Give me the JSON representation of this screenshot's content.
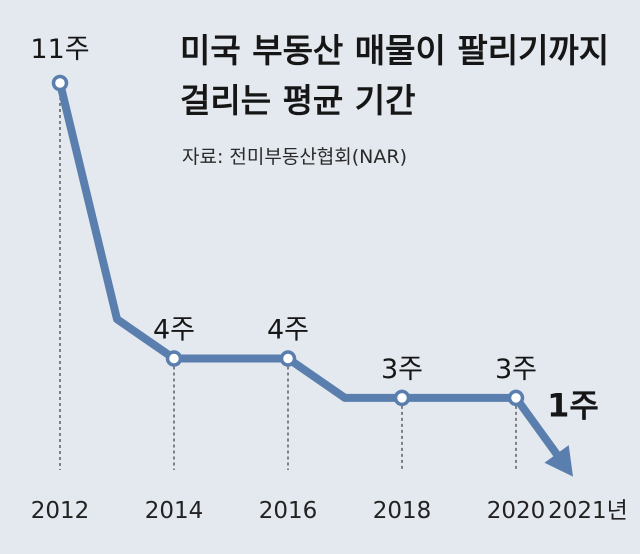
{
  "chart_data": {
    "type": "line",
    "title_lines": [
      "미국 부동산 매물이 팔리기까지",
      "걸리는 평균 기간"
    ],
    "source": "자료: 전미부동산협회(NAR)",
    "x_tick_labels": [
      "2012",
      "2014",
      "2016",
      "2018",
      "2020",
      "2021년"
    ],
    "series": [
      {
        "x": [
          2012,
          2013,
          2014,
          2015,
          2016,
          2017,
          2018,
          2019,
          2020,
          2021
        ],
        "values": [
          11,
          5,
          4,
          4,
          4,
          3,
          3,
          3,
          3,
          1
        ]
      }
    ],
    "data_labels": [
      {
        "x": 2012,
        "y": 11,
        "text": "11주"
      },
      {
        "x": 2014,
        "y": 4,
        "text": "4주"
      },
      {
        "x": 2016,
        "y": 4,
        "text": "4주"
      },
      {
        "x": 2018,
        "y": 3,
        "text": "3주"
      },
      {
        "x": 2020,
        "y": 3,
        "text": "3주"
      },
      {
        "x": 2021,
        "y": 1,
        "text": "1주"
      }
    ],
    "marked_x": [
      2012,
      2014,
      2016,
      2018,
      2020
    ],
    "xlim": [
      2012,
      2021
    ],
    "ylim": [
      0,
      11
    ],
    "grid": false,
    "legend": "none",
    "colors": {
      "line": "#5a7fae",
      "marker_fill": "#ffffff",
      "background": "#e4e9ef",
      "text": "#161616"
    }
  }
}
